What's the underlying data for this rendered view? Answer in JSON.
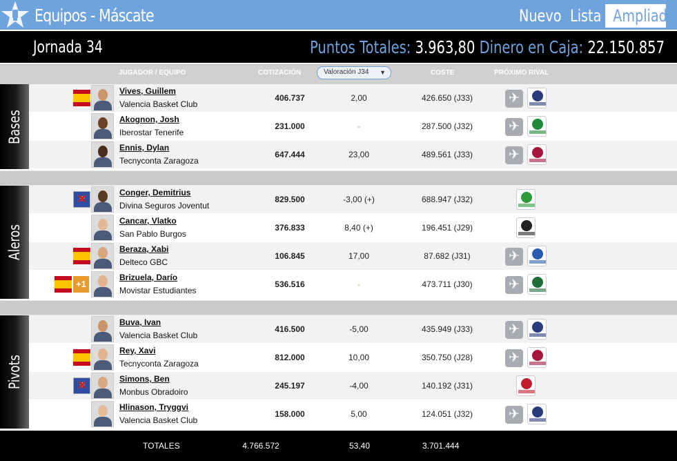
{
  "app": {
    "title": "Equipos - Máscate",
    "tabs": [
      "Nuevo",
      "Lista",
      "Ampliado"
    ]
  },
  "stats": {
    "jornada": "Jornada 34",
    "points_label": "Puntos Totales:",
    "points_value": "3.963,80",
    "money_label": "Dinero en Caja:",
    "money_value": "22.150.857"
  },
  "columns": {
    "player": "JUGADOR / EQUIPO",
    "price": "COTIZACIÓN",
    "valuation_select": "Valoración J34",
    "cost": "COSTE",
    "next_rival": "PRÓXIMO RIVAL"
  },
  "groups": [
    {
      "label": "Bases",
      "players": [
        {
          "name": "Vives, Guillem",
          "team": "Valencia Basket Club",
          "price": "406.737",
          "valuation": "2,00",
          "cost": "426.650 (J33)",
          "flag": "es",
          "extra": "",
          "away": true,
          "rival_color": "#2b3a7a"
        },
        {
          "name": "Akognon, Josh",
          "team": "Iberostar Tenerife",
          "price": "231.000",
          "valuation": "-",
          "cost": "287.500 (J32)",
          "flag": "",
          "extra": "",
          "away": true,
          "rival_color": "#1e8a3a"
        },
        {
          "name": "Ennis, Dylan",
          "team": "Tecnyconta Zaragoza",
          "price": "647.444",
          "valuation": "23,00",
          "cost": "489.561 (J33)",
          "flag": "",
          "extra": "",
          "away": true,
          "rival_color": "#a3153a"
        }
      ]
    },
    {
      "label": "Aleros",
      "players": [
        {
          "name": "Conger, Demitrius",
          "team": "Divina Seguros Joventut",
          "price": "829.500",
          "valuation": "-3,00 (+)",
          "cost": "688.947 (J32)",
          "flag": "eu",
          "extra": "",
          "away": false,
          "rival_color": "#2e9a3a"
        },
        {
          "name": "Cancar, Vlatko",
          "team": "San Pablo Burgos",
          "price": "376.833",
          "valuation": "8,40 (+)",
          "cost": "196.451 (J29)",
          "flag": "",
          "extra": "",
          "away": false,
          "rival_color": "#222222"
        },
        {
          "name": "Beraza, Xabi",
          "team": "Delteco GBC",
          "price": "106.845",
          "valuation": "17,00",
          "cost": "87.682 (J31)",
          "flag": "es",
          "extra": "",
          "away": true,
          "rival_color": "#2a5ab0"
        },
        {
          "name": "Brizuela, Darío",
          "team": "Movistar Estudiantes",
          "price": "536.516",
          "valuation": "-",
          "cost": "473.711 (J30)",
          "flag": "es",
          "extra": "+1",
          "away": true,
          "rival_color": "#1f6d3a"
        }
      ]
    },
    {
      "label": "Pivots",
      "players": [
        {
          "name": "Buva, Ivan",
          "team": "Valencia Basket Club",
          "price": "416.500",
          "valuation": "-5,00",
          "cost": "435.949 (J33)",
          "flag": "",
          "extra": "",
          "away": true,
          "rival_color": "#2b3a7a"
        },
        {
          "name": "Rey, Xavi",
          "team": "Tecnyconta Zaragoza",
          "price": "812.000",
          "valuation": "10,00",
          "cost": "350.750 (J28)",
          "flag": "es",
          "extra": "",
          "away": true,
          "rival_color": "#a3153a"
        },
        {
          "name": "Simons, Ben",
          "team": "Monbus Obradoiro",
          "price": "245.197",
          "valuation": "-4,00",
          "cost": "140.192 (J31)",
          "flag": "eu",
          "extra": "",
          "away": false,
          "rival_color": "#c21e2e"
        },
        {
          "name": "Hlinason, Tryggvi",
          "team": "Valencia Basket Club",
          "price": "158.000",
          "valuation": "5,00",
          "cost": "124.051 (J32)",
          "flag": "",
          "extra": "",
          "away": true,
          "rival_color": "#2b3a7a"
        }
      ]
    }
  ],
  "totals": {
    "label": "TOTALES",
    "price": "4.766.572",
    "valuation": "53,40",
    "cost": "3.701.444"
  },
  "icons": {
    "logo": "star-trophy-icon",
    "away": "airplane-icon",
    "flags": {
      "es": "spain-flag-icon",
      "eu": "eu-flag-icon"
    }
  },
  "colors": {
    "accent": "#6fa3de",
    "highlight": "#e89a2a"
  }
}
